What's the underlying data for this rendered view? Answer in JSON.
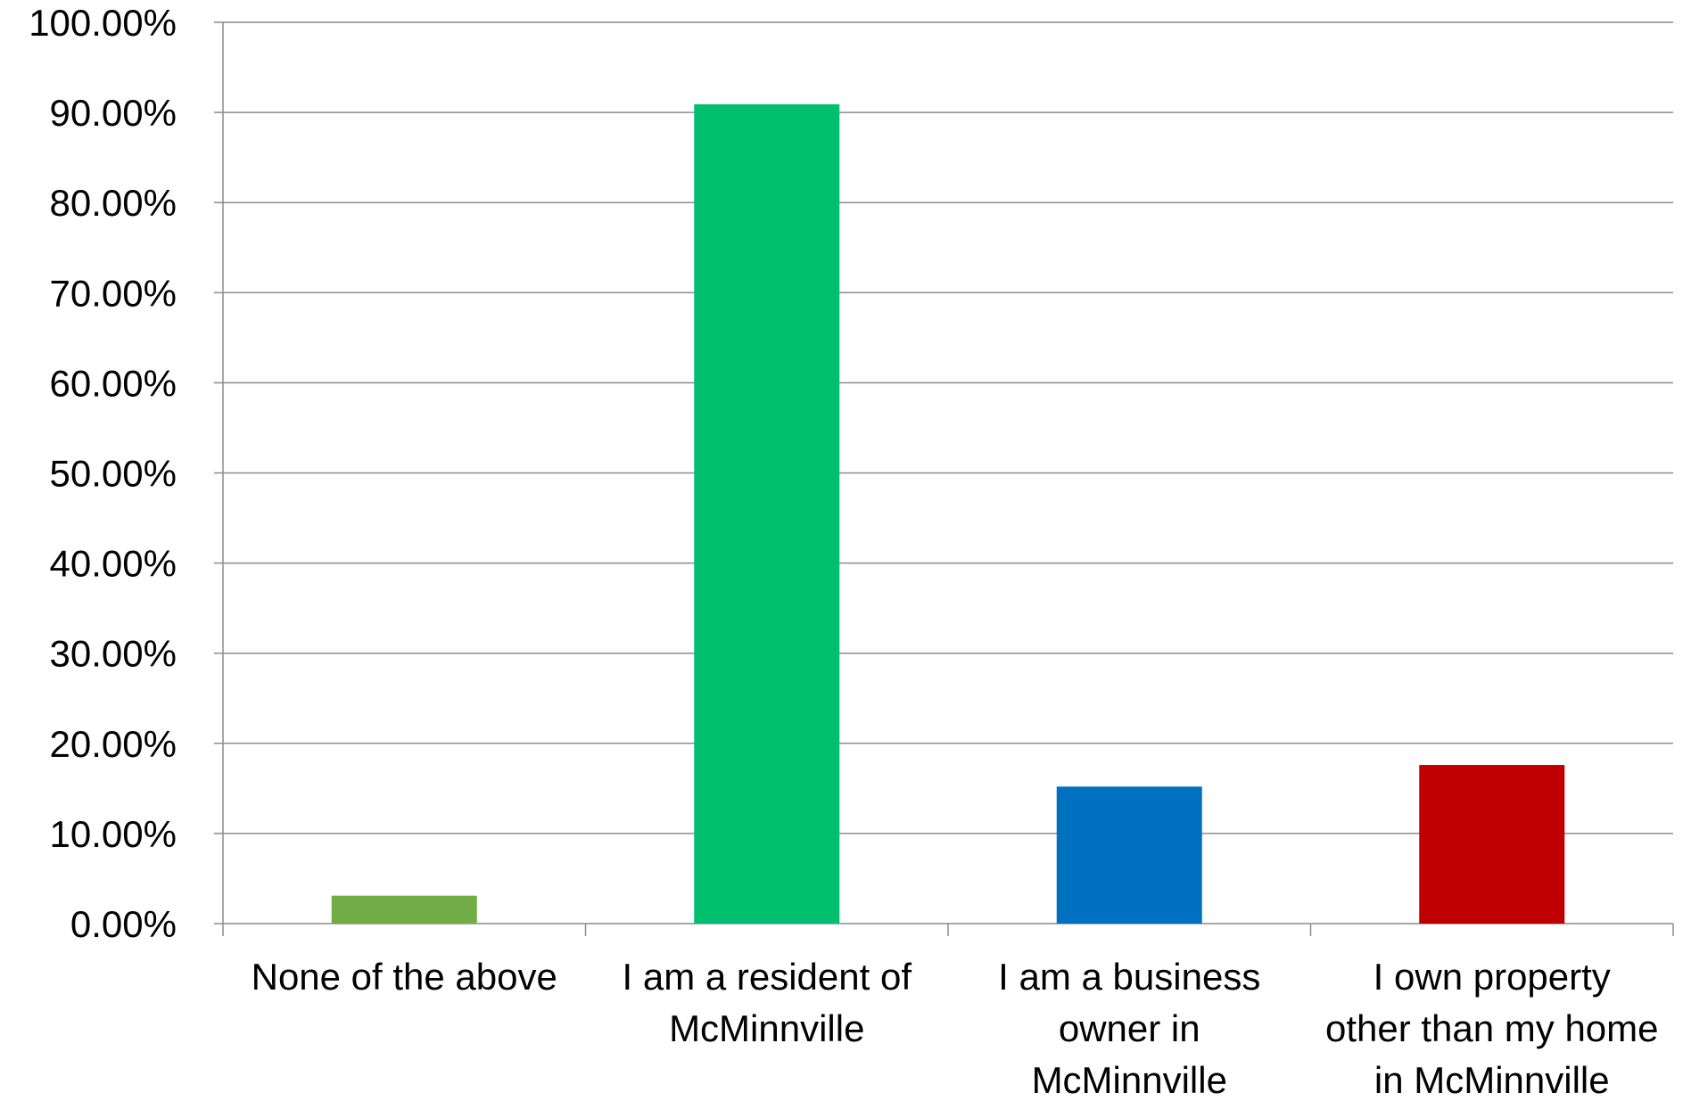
{
  "chart_data": {
    "type": "bar",
    "title": "",
    "xlabel": "",
    "ylabel": "",
    "categories": [
      [
        "None of the above"
      ],
      [
        "I am a resident of",
        "McMinnville"
      ],
      [
        "I am a business",
        "owner in",
        "McMinnville"
      ],
      [
        "I own property",
        "other than my home",
        "in McMinnville"
      ]
    ],
    "values": [
      3.1,
      90.9,
      15.2,
      17.6
    ],
    "colors": [
      "#70ad47",
      "#00bf6f",
      "#0070c0",
      "#c00000"
    ],
    "ylim": [
      0,
      100
    ],
    "yticks": [
      "0.00%",
      "10.00%",
      "20.00%",
      "30.00%",
      "40.00%",
      "50.00%",
      "60.00%",
      "70.00%",
      "80.00%",
      "90.00%",
      "100.00%"
    ],
    "grid": true,
    "legend": "none"
  }
}
